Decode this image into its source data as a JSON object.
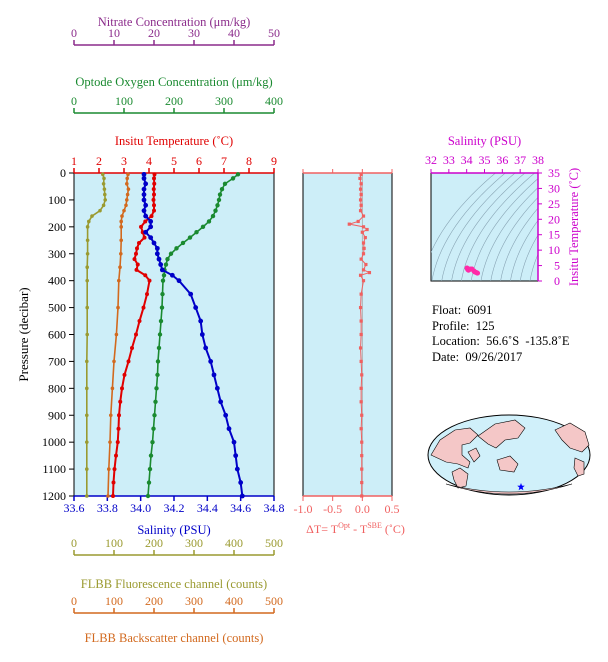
{
  "colors": {
    "nitrate": "#8b2b8b",
    "oxygen": "#1a8a30",
    "temperature": "#e00000",
    "salinity": "#0000c8",
    "fluorescence": "#9a9a30",
    "backscatter": "#d2691e",
    "delta": "#f06060",
    "ts_axis": "#cc00cc",
    "panel_bg": "#cdeef8"
  },
  "info": {
    "float_label": "Float:",
    "float_value": "6091",
    "profile_label": "Profile:",
    "profile_value": "125",
    "location_label": "Location:",
    "location_value": "56.6˚S  -135.8˚E",
    "date_label": "Date:",
    "date_value": "09/26/2017"
  },
  "chart_data": [
    {
      "type": "line",
      "title": "",
      "ylabel": "Pressure (decibar)",
      "ylim": [
        1200,
        0
      ],
      "yticks": [
        0,
        100,
        200,
        300,
        400,
        500,
        600,
        700,
        800,
        900,
        1000,
        1100,
        1200
      ],
      "axes": {
        "nitrate": {
          "label": "Nitrate Concentration (μm/kg)",
          "lim": [
            0,
            50
          ],
          "ticks": [
            0,
            10,
            20,
            30,
            40,
            50
          ]
        },
        "oxygen": {
          "label": "Optode Oxygen Concentration (μm/kg)",
          "lim": [
            0,
            400
          ],
          "ticks": [
            0,
            100,
            200,
            300,
            400
          ]
        },
        "temperature": {
          "label": "Insitu Temperature (˚C)",
          "lim": [
            1,
            9
          ],
          "ticks": [
            1,
            2,
            3,
            4,
            5,
            6,
            7,
            8,
            9
          ]
        },
        "salinity": {
          "label": "Salinity (PSU)",
          "lim": [
            33.6,
            34.8
          ],
          "ticks": [
            "33.6",
            "33.8",
            "34.0",
            "34.2",
            "34.4",
            "34.6",
            "34.8"
          ]
        },
        "fluorescence": {
          "label": "FLBB Fluorescence channel (counts)",
          "lim": [
            0,
            500
          ],
          "ticks": [
            0,
            100,
            200,
            300,
            400,
            500
          ]
        },
        "backscatter": {
          "label": "FLBB Backscatter channel (counts)",
          "lim": [
            0,
            500
          ],
          "ticks": [
            0,
            100,
            200,
            300,
            400,
            500
          ]
        }
      },
      "series": [
        {
          "key": "oxygen",
          "axis": "oxygen",
          "points": [
            [
              5,
              328
            ],
            [
              20,
              318
            ],
            [
              40,
              302
            ],
            [
              60,
              296
            ],
            [
              80,
              292
            ],
            [
              100,
              290
            ],
            [
              120,
              287
            ],
            [
              140,
              283
            ],
            [
              160,
              278
            ],
            [
              180,
              270
            ],
            [
              200,
              258
            ],
            [
              220,
              245
            ],
            [
              240,
              232
            ],
            [
              260,
              218
            ],
            [
              280,
              205
            ],
            [
              300,
              194
            ],
            [
              320,
              187
            ],
            [
              340,
              184
            ],
            [
              360,
              181
            ],
            [
              380,
              180
            ],
            [
              400,
              178
            ],
            [
              450,
              177
            ],
            [
              500,
              176
            ],
            [
              550,
              174
            ],
            [
              600,
              172
            ],
            [
              650,
              170
            ],
            [
              700,
              168
            ],
            [
              750,
              167
            ],
            [
              800,
              165
            ],
            [
              850,
              163
            ],
            [
              900,
              161
            ],
            [
              950,
              159
            ],
            [
              1000,
              157
            ],
            [
              1050,
              154
            ],
            [
              1100,
              152
            ],
            [
              1150,
              150
            ],
            [
              1200,
              148
            ]
          ]
        },
        {
          "key": "temperature",
          "axis": "temperature",
          "points": [
            [
              5,
              4.22
            ],
            [
              20,
              4.2
            ],
            [
              40,
              4.21
            ],
            [
              60,
              4.19
            ],
            [
              80,
              4.2
            ],
            [
              100,
              4.18
            ],
            [
              120,
              4.2
            ],
            [
              140,
              4.2
            ],
            [
              160,
              4.1
            ],
            [
              180,
              3.85
            ],
            [
              200,
              3.68
            ],
            [
              220,
              3.75
            ],
            [
              240,
              3.82
            ],
            [
              260,
              3.6
            ],
            [
              280,
              3.52
            ],
            [
              300,
              3.48
            ],
            [
              320,
              3.42
            ],
            [
              340,
              3.55
            ],
            [
              360,
              3.5
            ],
            [
              380,
              3.85
            ],
            [
              400,
              4.02
            ],
            [
              450,
              3.92
            ],
            [
              500,
              3.78
            ],
            [
              550,
              3.62
            ],
            [
              600,
              3.48
            ],
            [
              650,
              3.32
            ],
            [
              700,
              3.18
            ],
            [
              750,
              3.02
            ],
            [
              800,
              2.92
            ],
            [
              850,
              2.85
            ],
            [
              900,
              2.8
            ],
            [
              950,
              2.78
            ],
            [
              1000,
              2.75
            ],
            [
              1050,
              2.68
            ],
            [
              1100,
              2.62
            ],
            [
              1150,
              2.58
            ],
            [
              1200,
              2.56
            ]
          ]
        },
        {
          "key": "salinity",
          "axis": "salinity",
          "points": [
            [
              5,
              34.02
            ],
            [
              20,
              34.02
            ],
            [
              40,
              34.03
            ],
            [
              60,
              34.02
            ],
            [
              80,
              34.02
            ],
            [
              100,
              34.02
            ],
            [
              120,
              34.03
            ],
            [
              140,
              34.02
            ],
            [
              160,
              34.03
            ],
            [
              180,
              34.06
            ],
            [
              200,
              34.06
            ],
            [
              220,
              34.03
            ],
            [
              240,
              34.06
            ],
            [
              260,
              34.08
            ],
            [
              280,
              34.1
            ],
            [
              300,
              34.1
            ],
            [
              320,
              34.11
            ],
            [
              340,
              34.12
            ],
            [
              360,
              34.13
            ],
            [
              380,
              34.19
            ],
            [
              400,
              34.23
            ],
            [
              450,
              34.3
            ],
            [
              500,
              34.33
            ],
            [
              550,
              34.36
            ],
            [
              600,
              34.37
            ],
            [
              650,
              34.39
            ],
            [
              700,
              34.42
            ],
            [
              750,
              34.44
            ],
            [
              800,
              34.46
            ],
            [
              850,
              34.48
            ],
            [
              900,
              34.51
            ],
            [
              950,
              34.53
            ],
            [
              1000,
              34.56
            ],
            [
              1050,
              34.57
            ],
            [
              1100,
              34.58
            ],
            [
              1150,
              34.6
            ],
            [
              1200,
              34.61
            ]
          ]
        },
        {
          "key": "fluorescence",
          "axis": "fluorescence",
          "points": [
            [
              5,
              72
            ],
            [
              20,
              75
            ],
            [
              40,
              74
            ],
            [
              60,
              76
            ],
            [
              80,
              77
            ],
            [
              100,
              78
            ],
            [
              120,
              74
            ],
            [
              140,
              65
            ],
            [
              160,
              45
            ],
            [
              180,
              37
            ],
            [
              200,
              34
            ],
            [
              250,
              34
            ],
            [
              300,
              34
            ],
            [
              350,
              33
            ],
            [
              400,
              33
            ],
            [
              500,
              33
            ],
            [
              600,
              33
            ],
            [
              700,
              32
            ],
            [
              800,
              32
            ],
            [
              900,
              32
            ],
            [
              1000,
              32
            ],
            [
              1100,
              32
            ],
            [
              1200,
              32
            ]
          ]
        },
        {
          "key": "backscatter",
          "axis": "backscatter",
          "points": [
            [
              5,
              135
            ],
            [
              20,
              133
            ],
            [
              40,
              132
            ],
            [
              60,
              136
            ],
            [
              80,
              134
            ],
            [
              100,
              132
            ],
            [
              120,
              130
            ],
            [
              140,
              125
            ],
            [
              160,
              120
            ],
            [
              180,
              118
            ],
            [
              200,
              118
            ],
            [
              250,
              118
            ],
            [
              300,
              117
            ],
            [
              350,
              115
            ],
            [
              400,
              112
            ],
            [
              500,
              110
            ],
            [
              600,
              106
            ],
            [
              700,
              100
            ],
            [
              800,
              96
            ],
            [
              900,
              92
            ],
            [
              1000,
              90
            ],
            [
              1100,
              87
            ],
            [
              1200,
              85
            ]
          ]
        }
      ]
    },
    {
      "type": "line",
      "title": "",
      "xlabel": "ΔT= TOpt - TSBE (˚C)",
      "xlabel_parts": {
        "prefix": "ΔT= T",
        "sup1": "Opt",
        "mid": " - T",
        "sup2": "SBE",
        "suffix": " (˚C)"
      },
      "xlim": [
        -1.0,
        0.5
      ],
      "xticks": [
        "-1.0",
        "-0.5",
        "0.0",
        "0.5"
      ],
      "ylim": [
        1200,
        0
      ],
      "series": [
        {
          "key": "delta",
          "points": [
            [
              5,
              -0.02
            ],
            [
              20,
              -0.04
            ],
            [
              40,
              -0.02
            ],
            [
              60,
              -0.03
            ],
            [
              80,
              -0.02
            ],
            [
              100,
              -0.03
            ],
            [
              120,
              -0.02
            ],
            [
              140,
              -0.03
            ],
            [
              160,
              0.02
            ],
            [
              180,
              -0.07
            ],
            [
              190,
              -0.22
            ],
            [
              200,
              0.02
            ],
            [
              210,
              0.08
            ],
            [
              220,
              0.0
            ],
            [
              240,
              0.05
            ],
            [
              260,
              0.02
            ],
            [
              280,
              0.03
            ],
            [
              300,
              0.02
            ],
            [
              320,
              -0.02
            ],
            [
              340,
              0.06
            ],
            [
              360,
              0.02
            ],
            [
              370,
              0.12
            ],
            [
              380,
              -0.03
            ],
            [
              400,
              0.02
            ],
            [
              450,
              -0.02
            ],
            [
              500,
              -0.03
            ],
            [
              550,
              -0.02
            ],
            [
              600,
              -0.02
            ],
            [
              650,
              -0.03
            ],
            [
              700,
              -0.02
            ],
            [
              750,
              -0.01
            ],
            [
              800,
              -0.02
            ],
            [
              850,
              -0.02
            ],
            [
              900,
              -0.01
            ],
            [
              950,
              -0.02
            ],
            [
              1000,
              -0.01
            ],
            [
              1050,
              -0.01
            ],
            [
              1100,
              -0.01
            ],
            [
              1150,
              -0.01
            ],
            [
              1200,
              -0.01
            ]
          ]
        }
      ]
    },
    {
      "type": "scatter",
      "title": "",
      "xlabel": "Salinity (PSU)",
      "ylabel": "Insitu Temperature (˚C)",
      "xlim": [
        32,
        38
      ],
      "ylim": [
        0,
        35
      ],
      "xticks": [
        32,
        33,
        34,
        35,
        36,
        37,
        38
      ],
      "yticks": [
        0,
        5,
        10,
        15,
        20,
        25,
        30,
        35
      ],
      "series": [
        {
          "key": "ts",
          "points": [
            [
              34.02,
              4.2
            ],
            [
              34.03,
              4.1
            ],
            [
              34.06,
              3.7
            ],
            [
              34.1,
              3.5
            ],
            [
              34.13,
              3.6
            ],
            [
              34.2,
              3.9
            ],
            [
              34.3,
              3.9
            ],
            [
              34.4,
              3.3
            ],
            [
              34.46,
              2.9
            ],
            [
              34.53,
              2.8
            ],
            [
              34.58,
              2.6
            ],
            [
              34.61,
              2.55
            ]
          ]
        }
      ]
    }
  ]
}
